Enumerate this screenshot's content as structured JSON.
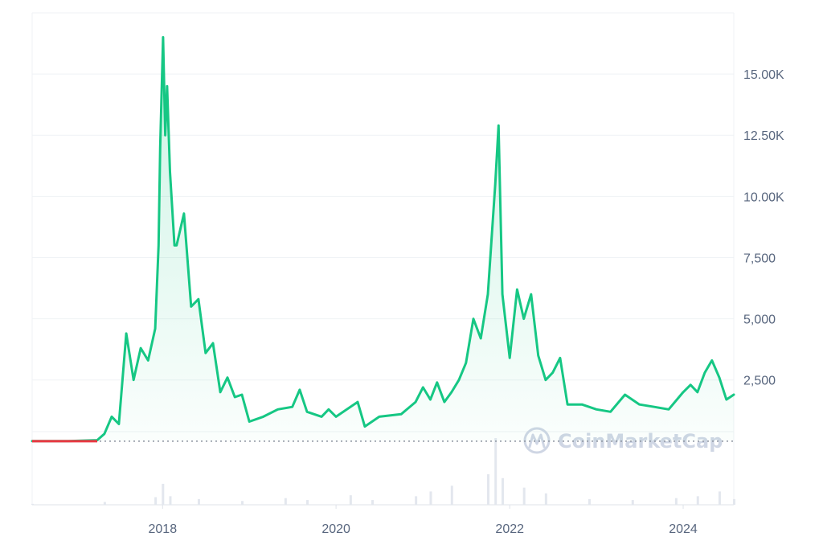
{
  "chart_data": {
    "type": "area",
    "title": "",
    "xlabel": "",
    "ylabel": "",
    "x_ticks": [
      "2018",
      "2020",
      "2022",
      "2024"
    ],
    "y_ticks": [
      "2,500",
      "5,000",
      "7,500",
      "10.00K",
      "12.50K",
      "15.00K"
    ],
    "y_tick_values": [
      2500,
      5000,
      7500,
      10000,
      12500,
      15000
    ],
    "ylim": [
      -2600,
      17500
    ],
    "xlim": [
      "2016-07",
      "2024-08"
    ],
    "baseline": 0,
    "grid": true,
    "series": [
      {
        "color": "#16c784",
        "below_baseline_color": "#ea3943",
        "points": [
          [
            "2016-07",
            0
          ],
          [
            "2016-12",
            0
          ],
          [
            "2017-04",
            40
          ],
          [
            "2017-05",
            300
          ],
          [
            "2017-06",
            1000
          ],
          [
            "2017-07",
            700
          ],
          [
            "2017-08",
            4400
          ],
          [
            "2017-09",
            2500
          ],
          [
            "2017-10",
            3800
          ],
          [
            "2017-11",
            3300
          ],
          [
            "2017-12",
            4600
          ],
          [
            "2017-12-15",
            8000
          ],
          [
            "2017-12-22",
            12000
          ],
          [
            "2018-01-03",
            16500
          ],
          [
            "2018-01-12",
            12500
          ],
          [
            "2018-01-20",
            14500
          ],
          [
            "2018-02",
            11000
          ],
          [
            "2018-02-20",
            8000
          ],
          [
            "2018-03",
            8000
          ],
          [
            "2018-04",
            9300
          ],
          [
            "2018-05",
            5500
          ],
          [
            "2018-06",
            5800
          ],
          [
            "2018-07",
            3600
          ],
          [
            "2018-08",
            4000
          ],
          [
            "2018-09",
            2000
          ],
          [
            "2018-10",
            2600
          ],
          [
            "2018-11",
            1800
          ],
          [
            "2018-12",
            1900
          ],
          [
            "2019-01",
            800
          ],
          [
            "2019-03",
            1000
          ],
          [
            "2019-05",
            1300
          ],
          [
            "2019-07",
            1400
          ],
          [
            "2019-08",
            2100
          ],
          [
            "2019-09",
            1200
          ],
          [
            "2019-11",
            1000
          ],
          [
            "2019-12",
            1300
          ],
          [
            "2020-01",
            1000
          ],
          [
            "2020-04",
            1600
          ],
          [
            "2020-05",
            600
          ],
          [
            "2020-07",
            1000
          ],
          [
            "2020-10",
            1100
          ],
          [
            "2020-12",
            1600
          ],
          [
            "2021-01",
            2200
          ],
          [
            "2021-02",
            1700
          ],
          [
            "2021-03",
            2400
          ],
          [
            "2021-04",
            1600
          ],
          [
            "2021-05",
            2000
          ],
          [
            "2021-06",
            2500
          ],
          [
            "2021-07",
            3200
          ],
          [
            "2021-08",
            5000
          ],
          [
            "2021-09",
            4200
          ],
          [
            "2021-10",
            6000
          ],
          [
            "2021-11",
            10500
          ],
          [
            "2021-11-15",
            12900
          ],
          [
            "2021-12",
            6000
          ],
          [
            "2022-01",
            3400
          ],
          [
            "2022-02",
            6200
          ],
          [
            "2022-03",
            5000
          ],
          [
            "2022-04",
            6000
          ],
          [
            "2022-05",
            3500
          ],
          [
            "2022-06",
            2500
          ],
          [
            "2022-07",
            2800
          ],
          [
            "2022-08",
            3400
          ],
          [
            "2022-09",
            1500
          ],
          [
            "2022-11",
            1500
          ],
          [
            "2023-01",
            1300
          ],
          [
            "2023-03",
            1200
          ],
          [
            "2023-05",
            1900
          ],
          [
            "2023-07",
            1500
          ],
          [
            "2023-09",
            1400
          ],
          [
            "2023-11",
            1300
          ],
          [
            "2024-01",
            2000
          ],
          [
            "2024-02",
            2300
          ],
          [
            "2024-03",
            2000
          ],
          [
            "2024-04",
            2800
          ],
          [
            "2024-05",
            3300
          ],
          [
            "2024-06",
            2600
          ],
          [
            "2024-07",
            1700
          ],
          [
            "2024-08",
            1900
          ]
        ]
      }
    ],
    "volume": {
      "color": "#e3e7ee",
      "values": [
        [
          "2016-07",
          1
        ],
        [
          "2017-05",
          3
        ],
        [
          "2017-12",
          8
        ],
        [
          "2018-01",
          22
        ],
        [
          "2018-02",
          9
        ],
        [
          "2018-06",
          6
        ],
        [
          "2018-12",
          4
        ],
        [
          "2019-06",
          7
        ],
        [
          "2019-09",
          5
        ],
        [
          "2020-03",
          10
        ],
        [
          "2020-06",
          5
        ],
        [
          "2020-12",
          9
        ],
        [
          "2021-02",
          14
        ],
        [
          "2021-05",
          20
        ],
        [
          "2021-10",
          32
        ],
        [
          "2021-11",
          70
        ],
        [
          "2021-12",
          28
        ],
        [
          "2022-03",
          18
        ],
        [
          "2022-06",
          12
        ],
        [
          "2022-12",
          6
        ],
        [
          "2023-06",
          5
        ],
        [
          "2023-12",
          7
        ],
        [
          "2024-03",
          9
        ],
        [
          "2024-06",
          14
        ],
        [
          "2024-08",
          6
        ]
      ]
    },
    "watermark": "CoinMarketCap",
    "colors": {
      "up": "#16c784",
      "down": "#ea3943",
      "grid": "#eff2f5",
      "tick_text": "#58667e",
      "baseline": "#8a919e"
    }
  }
}
